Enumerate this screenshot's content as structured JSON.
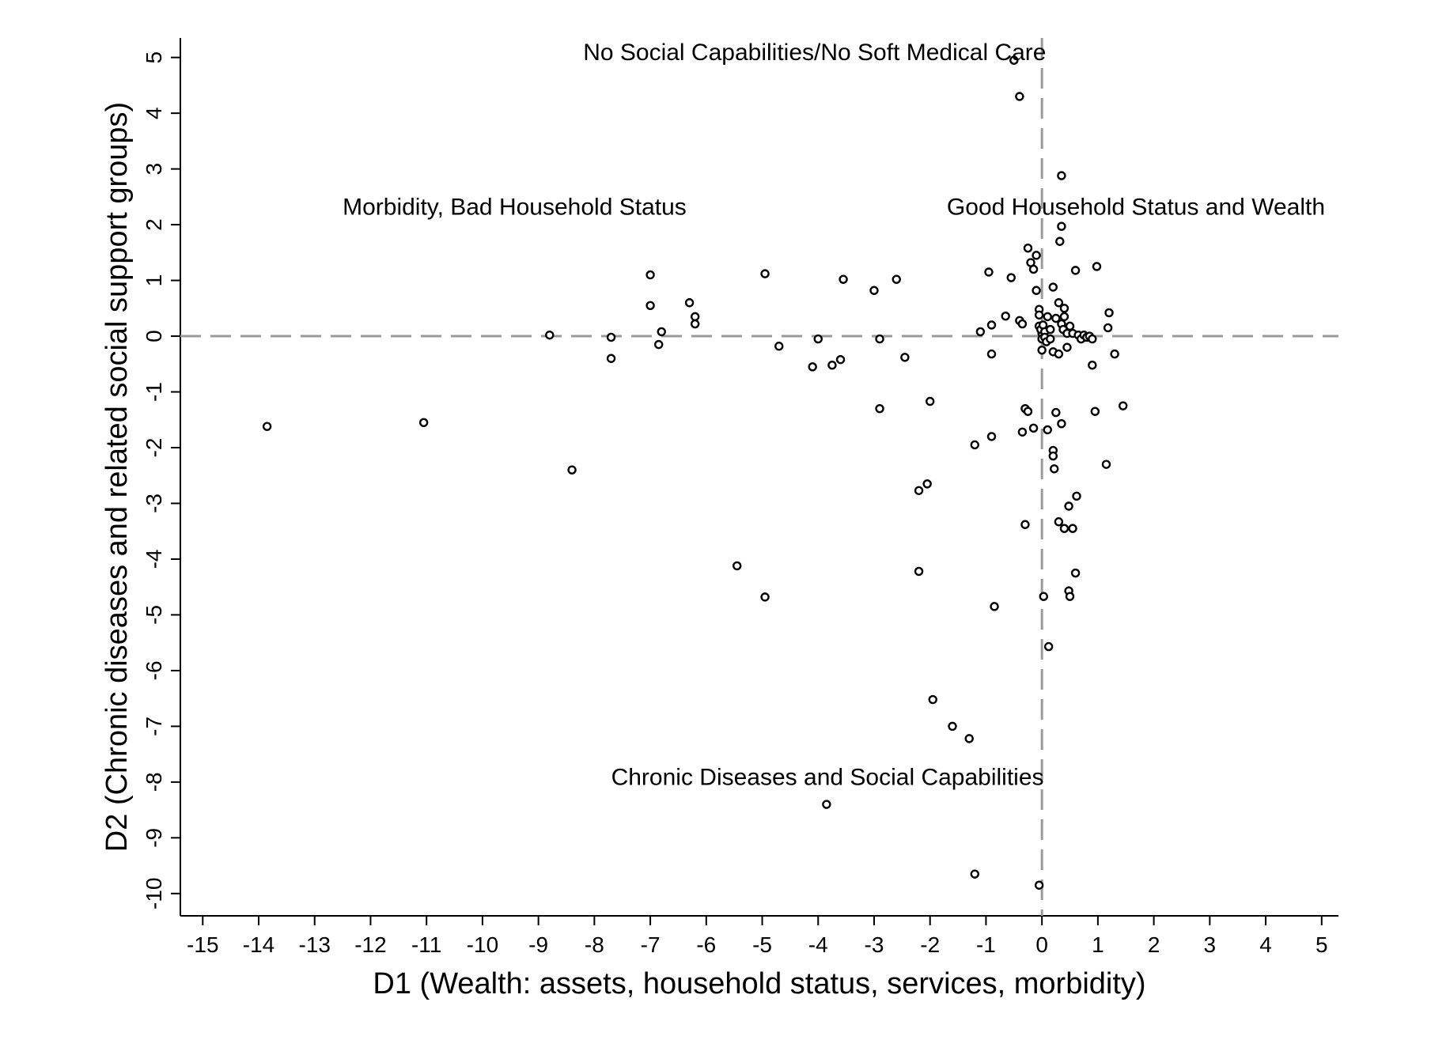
{
  "chart_data": {
    "type": "scatter",
    "title": "",
    "xlabel": "D1 (Wealth: assets, household status, services, morbidity)",
    "ylabel": "D2 (Chronic diseases and related social support groups)",
    "xlim": [
      -15.4,
      5.3
    ],
    "ylim": [
      -10.4,
      5.35
    ],
    "xticks": [
      -15,
      -14,
      -13,
      -12,
      -11,
      -10,
      -9,
      -8,
      -7,
      -6,
      -5,
      -4,
      -3,
      -2,
      -1,
      0,
      1,
      2,
      3,
      4,
      5
    ],
    "yticks": [
      5,
      4,
      3,
      2,
      1,
      0,
      -1,
      -2,
      -3,
      -4,
      -5,
      -6,
      -7,
      -8,
      -9,
      -10
    ],
    "reference_lines": {
      "x": 0,
      "y": 0,
      "style": "dashed",
      "color": "#9a9a9a"
    },
    "grid": false,
    "marker": "hollow circle",
    "annotations": [
      {
        "text": "No Social Capabilities/No Soft Medical Care",
        "x": -8.2,
        "y": 4.95
      },
      {
        "text": "Morbidity, Bad Household Status",
        "x": -12.5,
        "y": 2.18
      },
      {
        "text": "Good Household Status and Wealth",
        "x": -1.7,
        "y": 2.18
      },
      {
        "text": "Chronic Diseases and Social Capabilities",
        "x": -7.7,
        "y": -8.05
      }
    ],
    "points": [
      [
        -13.85,
        -1.62
      ],
      [
        -11.05,
        -1.55
      ],
      [
        -8.8,
        0.02
      ],
      [
        -8.4,
        -2.4
      ],
      [
        -7.7,
        -0.02
      ],
      [
        -7.7,
        -0.4
      ],
      [
        -7.0,
        1.1
      ],
      [
        -7.0,
        0.55
      ],
      [
        -6.8,
        0.08
      ],
      [
        -6.85,
        -0.15
      ],
      [
        -6.3,
        0.6
      ],
      [
        -6.2,
        0.35
      ],
      [
        -6.2,
        0.22
      ],
      [
        -5.45,
        -4.12
      ],
      [
        -4.95,
        1.12
      ],
      [
        -4.95,
        -4.68
      ],
      [
        -4.7,
        -0.18
      ],
      [
        -4.1,
        -0.55
      ],
      [
        -4.0,
        -0.05
      ],
      [
        -3.85,
        -8.4
      ],
      [
        -3.75,
        -0.52
      ],
      [
        -3.55,
        1.02
      ],
      [
        -3.6,
        -0.42
      ],
      [
        -3.0,
        0.82
      ],
      [
        -2.9,
        -0.05
      ],
      [
        -2.9,
        -1.3
      ],
      [
        -2.6,
        1.02
      ],
      [
        -2.45,
        -0.38
      ],
      [
        -2.2,
        -2.77
      ],
      [
        -2.2,
        -4.22
      ],
      [
        -2.05,
        -2.65
      ],
      [
        -2.0,
        -1.17
      ],
      [
        -1.95,
        -6.52
      ],
      [
        -1.6,
        -7.0
      ],
      [
        -1.3,
        -7.22
      ],
      [
        -1.2,
        -1.95
      ],
      [
        -1.2,
        -9.65
      ],
      [
        -1.1,
        0.08
      ],
      [
        -0.95,
        1.15
      ],
      [
        -0.9,
        0.2
      ],
      [
        -0.9,
        -0.32
      ],
      [
        -0.9,
        -1.8
      ],
      [
        -0.85,
        -4.85
      ],
      [
        -0.65,
        0.36
      ],
      [
        -0.55,
        1.05
      ],
      [
        -0.5,
        4.95
      ],
      [
        -0.4,
        4.3
      ],
      [
        -0.4,
        0.28
      ],
      [
        -0.35,
        0.22
      ],
      [
        -0.35,
        -1.72
      ],
      [
        -0.3,
        -1.3
      ],
      [
        -0.25,
        -1.35
      ],
      [
        -0.3,
        -3.38
      ],
      [
        -0.25,
        1.58
      ],
      [
        -0.2,
        1.32
      ],
      [
        -0.15,
        1.2
      ],
      [
        -0.15,
        -1.65
      ],
      [
        -0.1,
        1.45
      ],
      [
        -0.1,
        0.82
      ],
      [
        -0.05,
        0.48
      ],
      [
        -0.05,
        0.38
      ],
      [
        -0.05,
        -9.85
      ],
      [
        -0.05,
        0.18
      ],
      [
        0.0,
        0.1
      ],
      [
        0.0,
        0.05
      ],
      [
        0.0,
        -0.05
      ],
      [
        0.0,
        -0.25
      ],
      [
        -0.02,
        0.12
      ],
      [
        0.02,
        0.2
      ],
      [
        0.03,
        -4.67
      ],
      [
        0.05,
        0.08
      ],
      [
        0.05,
        -0.02
      ],
      [
        0.08,
        -0.1
      ],
      [
        0.1,
        0.35
      ],
      [
        0.1,
        -1.68
      ],
      [
        0.12,
        -5.57
      ],
      [
        0.15,
        0.12
      ],
      [
        0.15,
        -0.05
      ],
      [
        0.2,
        -0.28
      ],
      [
        0.2,
        0.88
      ],
      [
        0.2,
        -2.05
      ],
      [
        0.2,
        -2.15
      ],
      [
        0.22,
        -2.38
      ],
      [
        0.25,
        0.32
      ],
      [
        0.25,
        -1.37
      ],
      [
        0.3,
        -0.32
      ],
      [
        0.3,
        0.6
      ],
      [
        0.3,
        -3.33
      ],
      [
        0.32,
        1.7
      ],
      [
        0.35,
        1.97
      ],
      [
        0.35,
        2.88
      ],
      [
        0.35,
        -1.57
      ],
      [
        0.35,
        0.22
      ],
      [
        0.38,
        0.12
      ],
      [
        0.4,
        0.5
      ],
      [
        0.4,
        0.35
      ],
      [
        0.4,
        -3.45
      ],
      [
        0.45,
        0.05
      ],
      [
        0.45,
        -0.2
      ],
      [
        0.48,
        -3.05
      ],
      [
        0.48,
        -4.57
      ],
      [
        0.5,
        -4.67
      ],
      [
        0.5,
        0.18
      ],
      [
        0.55,
        -3.45
      ],
      [
        0.55,
        0.05
      ],
      [
        0.6,
        -4.25
      ],
      [
        0.6,
        1.18
      ],
      [
        0.62,
        -2.87
      ],
      [
        0.65,
        0.02
      ],
      [
        0.7,
        -0.05
      ],
      [
        0.75,
        0.02
      ],
      [
        0.8,
        -0.02
      ],
      [
        0.85,
        0.0
      ],
      [
        0.9,
        -0.52
      ],
      [
        0.9,
        -0.05
      ],
      [
        0.95,
        -1.35
      ],
      [
        0.98,
        1.25
      ],
      [
        1.15,
        -2.3
      ],
      [
        1.18,
        0.15
      ],
      [
        1.2,
        0.42
      ],
      [
        1.3,
        -0.32
      ],
      [
        1.45,
        -1.25
      ]
    ]
  }
}
